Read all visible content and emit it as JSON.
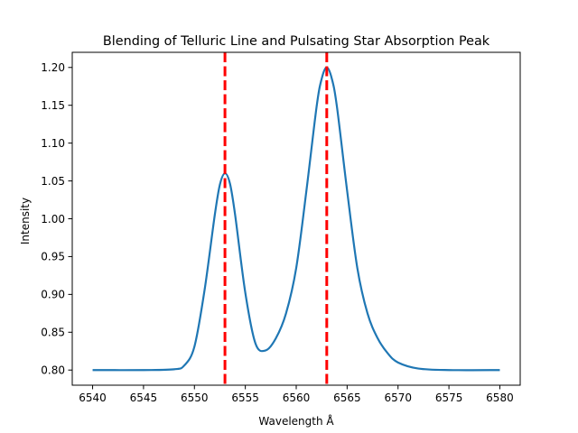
{
  "chart_data": {
    "type": "line",
    "title": "Blending of Telluric Line and Pulsating Star Absorption Peak",
    "xlabel": "Wavelength Å",
    "ylabel": "Intensity",
    "xlim": [
      6538,
      6582
    ],
    "ylim": [
      0.78,
      1.22
    ],
    "xticks": [
      6540,
      6545,
      6550,
      6555,
      6560,
      6565,
      6570,
      6575,
      6580
    ],
    "yticks": [
      0.8,
      0.85,
      0.9,
      0.95,
      1.0,
      1.05,
      1.1,
      1.15,
      1.2
    ],
    "grid": false,
    "series": [
      {
        "color": "#1f77b4",
        "x": [
          6540,
          6545,
          6548,
          6549,
          6550,
          6551,
          6552,
          6552.5,
          6553,
          6553.5,
          6554,
          6555,
          6556,
          6557,
          6558,
          6559,
          6560,
          6561,
          6562,
          6562.5,
          6563,
          6563.5,
          6564,
          6565,
          6566,
          6567,
          6568,
          6569,
          6570,
          6572,
          6575,
          6580
        ],
        "y": [
          0.8,
          0.8,
          0.801,
          0.806,
          0.831,
          0.906,
          1.005,
          1.045,
          1.06,
          1.046,
          1.005,
          0.902,
          0.835,
          0.826,
          0.842,
          0.875,
          0.935,
          1.037,
          1.148,
          1.185,
          1.2,
          1.185,
          1.148,
          1.037,
          0.935,
          0.875,
          0.842,
          0.822,
          0.81,
          0.802,
          0.8,
          0.8
        ]
      }
    ],
    "vlines": [
      {
        "x": 6553,
        "color": "#ff0000",
        "style": "dashed"
      },
      {
        "x": 6563,
        "color": "#ff0000",
        "style": "dashed"
      }
    ]
  }
}
